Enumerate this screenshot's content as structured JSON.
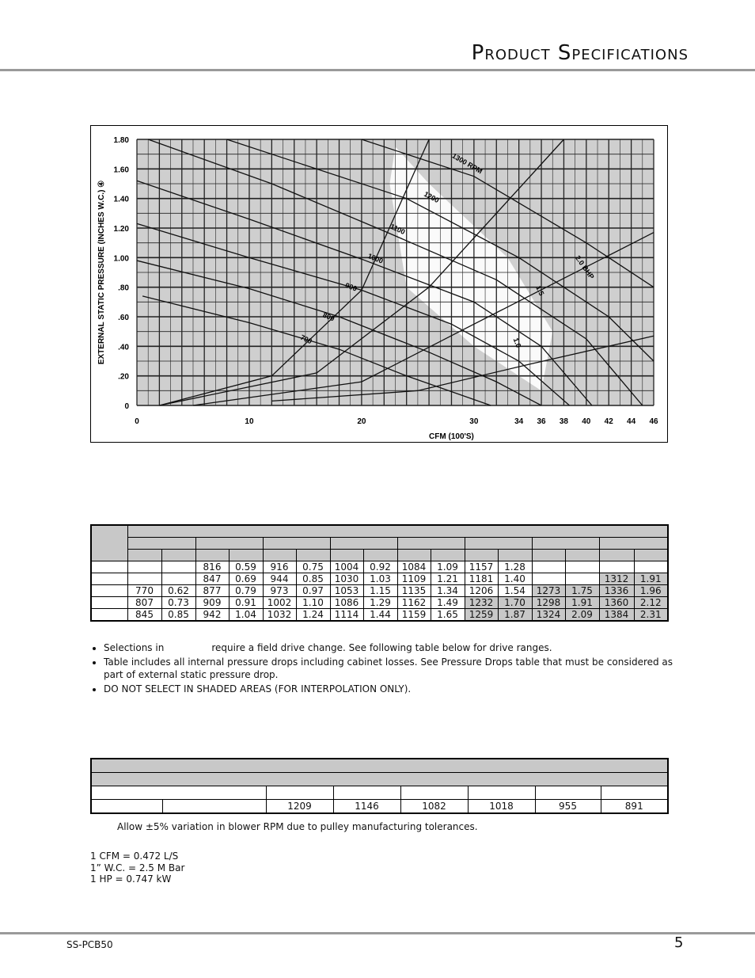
{
  "header": {
    "title": "Product Specifications"
  },
  "chart_data": {
    "type": "line",
    "xlabel": "CFM (100'S)",
    "ylabel": "EXTERNAL STATIC PRESSURE (INCHES W.C.) ④",
    "xlim": [
      0,
      46
    ],
    "ylim": [
      0,
      1.8
    ],
    "x_ticks": [
      "0",
      "10",
      "20",
      "30",
      "34",
      "36",
      "38",
      "40",
      "42",
      "44",
      "46"
    ],
    "x_tick_values": [
      0,
      10,
      20,
      30,
      34,
      36,
      38,
      40,
      42,
      44,
      46
    ],
    "y_ticks": [
      "0",
      ".20",
      ".40",
      ".60",
      ".80",
      "1.00",
      "1.20",
      "1.40",
      "1.60",
      "1.80"
    ],
    "y_tick_values": [
      0,
      0.2,
      0.4,
      0.6,
      0.8,
      1.0,
      1.2,
      1.4,
      1.6,
      1.8
    ],
    "grid": true,
    "series": [
      {
        "name": "700",
        "points": [
          [
            0.5,
            0.74
          ],
          [
            10,
            0.56
          ],
          [
            18,
            0.38
          ],
          [
            24,
            0.2
          ],
          [
            31.5,
            0
          ]
        ]
      },
      {
        "name": "800",
        "points": [
          [
            0,
            0.98
          ],
          [
            10,
            0.79
          ],
          [
            18,
            0.6
          ],
          [
            26,
            0.36
          ],
          [
            32,
            0.16
          ],
          [
            36,
            0
          ]
        ]
      },
      {
        "name": "900",
        "points": [
          [
            0,
            1.23
          ],
          [
            10,
            1.0
          ],
          [
            20,
            0.78
          ],
          [
            28,
            0.55
          ],
          [
            34,
            0.3
          ],
          [
            38.5,
            0
          ]
        ]
      },
      {
        "name": "1000",
        "points": [
          [
            0,
            1.52
          ],
          [
            10,
            1.26
          ],
          [
            20,
            0.99
          ],
          [
            30,
            0.7
          ],
          [
            36,
            0.4
          ],
          [
            40.5,
            0
          ]
        ]
      },
      {
        "name": "1100",
        "points": [
          [
            1,
            1.8
          ],
          [
            12,
            1.5
          ],
          [
            22,
            1.18
          ],
          [
            32,
            0.85
          ],
          [
            40,
            0.45
          ],
          [
            45,
            0
          ]
        ]
      },
      {
        "name": "1200",
        "points": [
          [
            8,
            1.8
          ],
          [
            24,
            1.4
          ],
          [
            34,
            1.0
          ],
          [
            42,
            0.6
          ],
          [
            46,
            0.3
          ]
        ]
      },
      {
        "name": "1300 RPM",
        "points": [
          [
            20,
            1.8
          ],
          [
            30,
            1.55
          ],
          [
            40,
            1.1
          ],
          [
            46,
            0.8
          ]
        ]
      },
      {
        "name": "1.0",
        "points": [
          [
            12,
            0.03
          ],
          [
            25,
            0.1
          ],
          [
            35,
            0.28
          ],
          [
            46,
            0.47
          ]
        ]
      },
      {
        "name": "1.5",
        "points": [
          [
            5,
            0
          ],
          [
            20,
            0.16
          ],
          [
            30,
            0.55
          ],
          [
            46,
            1.17
          ]
        ]
      },
      {
        "name": "2.0 BHP",
        "points": [
          [
            2,
            0
          ],
          [
            16,
            0.22
          ],
          [
            26,
            0.8
          ],
          [
            38,
            1.8
          ]
        ]
      },
      {
        "points": [
          [
            2,
            0
          ],
          [
            12,
            0.2
          ],
          [
            20,
            0.78
          ],
          [
            26,
            1.8
          ]
        ]
      }
    ],
    "labels": [
      "700",
      "800",
      "900",
      "1000",
      "1100",
      "1200",
      "1300 RPM",
      "1.0",
      "1.5",
      "2.0 BHP"
    ]
  },
  "table1": {
    "rows": [
      {
        "cells": [
          "",
          "",
          "816",
          "0.59",
          "916",
          "0.75",
          "1004",
          "0.92",
          "1084",
          "1.09",
          "1157",
          "1.28",
          "",
          "",
          "",
          ""
        ],
        "shaded": []
      },
      {
        "cells": [
          "",
          "",
          "847",
          "0.69",
          "944",
          "0.85",
          "1030",
          "1.03",
          "1109",
          "1.21",
          "1181",
          "1.40",
          "",
          "",
          "1312",
          "1.91"
        ],
        "shaded": [
          14,
          15
        ]
      },
      {
        "cells": [
          "770",
          "0.62",
          "877",
          "0.79",
          "973",
          "0.97",
          "1053",
          "1.15",
          "1135",
          "1.34",
          "1206",
          "1.54",
          "1273",
          "1.75",
          "1336",
          "1.96"
        ],
        "shaded": [
          12,
          13,
          14,
          15
        ]
      },
      {
        "cells": [
          "807",
          "0.73",
          "909",
          "0.91",
          "1002",
          "1.10",
          "1086",
          "1.29",
          "1162",
          "1.49",
          "1232",
          "1.70",
          "1298",
          "1.91",
          "1360",
          "2.12"
        ],
        "shaded": [
          10,
          11,
          12,
          13,
          14,
          15
        ]
      },
      {
        "cells": [
          "845",
          "0.85",
          "942",
          "1.04",
          "1032",
          "1.24",
          "1114",
          "1.44",
          "1159",
          "1.65",
          "1259",
          "1.87",
          "1324",
          "2.09",
          "1384",
          "2.31"
        ],
        "shaded": [
          10,
          11,
          12,
          13,
          14,
          15
        ]
      }
    ]
  },
  "notes": {
    "bullet1_a": "Selections in",
    "bullet1_b": "require a field drive change. See following table below for drive ranges.",
    "bullet2": "Table includes all internal pressure drops including cabinet losses. See Pressure Drops table that must be considered as part of external static pressure drop.",
    "bullet3": "DO NOT SELECT IN SHADED AREAS (FOR INTERPOLATION ONLY)."
  },
  "table2": {
    "rpm_values": [
      "1209",
      "1146",
      "1082",
      "1018",
      "955",
      "891"
    ]
  },
  "tolerance_note": "Allow ±5% variation in blower RPM due to pulley manufacturing tolerances.",
  "conversions": [
    "1 CFM = 0.472 L/S",
    "1” W.C. = 2.5 M Bar",
    "1 HP = 0.747 kW"
  ],
  "footer": {
    "doc_id": "SS-PCB50",
    "page_number": "5"
  }
}
